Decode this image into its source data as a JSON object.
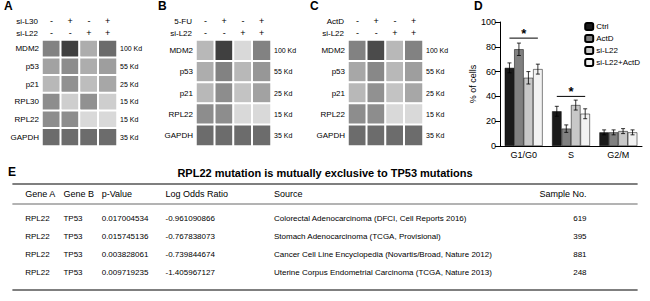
{
  "chart_data": [
    {
      "type": "heatmap",
      "title": "A",
      "lane_rows": [
        {
          "name": "si-L30",
          "values": [
            "-",
            "+",
            "-",
            "+"
          ]
        },
        {
          "name": "si-L22",
          "values": [
            "-",
            "-",
            "+",
            "+"
          ]
        }
      ],
      "categories": [
        "MDM2",
        "p53",
        "p21",
        "RPL30",
        "RPL22",
        "GAPDH"
      ],
      "kd_labels": [
        "100 Kd",
        "55 Kd",
        "25 Kd",
        "15 Kd",
        "15 Kd",
        "35 Kd"
      ],
      "values": [
        [
          0.55,
          0.85,
          0.35,
          0.65
        ],
        [
          0.4,
          0.5,
          0.35,
          0.42
        ],
        [
          0.3,
          0.48,
          0.28,
          0.38
        ],
        [
          0.5,
          0.2,
          0.48,
          0.2
        ],
        [
          0.5,
          0.5,
          0.15,
          0.15
        ],
        [
          0.65,
          0.65,
          0.65,
          0.65
        ]
      ],
      "zlim": [
        0,
        1
      ]
    },
    {
      "type": "heatmap",
      "title": "B",
      "lane_rows": [
        {
          "name": "5-FU",
          "values": [
            "-",
            "+",
            "-",
            "+"
          ]
        },
        {
          "name": "si-L22",
          "values": [
            "-",
            "-",
            "+",
            "+"
          ]
        }
      ],
      "categories": [
        "MDM2",
        "p53",
        "p21",
        "RPL22",
        "GAPDH"
      ],
      "kd_labels": [
        "100 Kd",
        "55 Kd",
        "25 Kd",
        "15 Kd",
        "35 Kd"
      ],
      "values": [
        [
          0.3,
          0.85,
          0.15,
          0.55
        ],
        [
          0.35,
          0.55,
          0.3,
          0.45
        ],
        [
          0.3,
          0.5,
          0.25,
          0.4
        ],
        [
          0.5,
          0.5,
          0.15,
          0.15
        ],
        [
          0.65,
          0.65,
          0.65,
          0.65
        ]
      ],
      "zlim": [
        0,
        1
      ]
    },
    {
      "type": "heatmap",
      "title": "C",
      "lane_rows": [
        {
          "name": "ActD",
          "values": [
            "-",
            "+",
            "-",
            "+"
          ]
        },
        {
          "name": "si-L22",
          "values": [
            "-",
            "-",
            "+",
            "+"
          ]
        }
      ],
      "categories": [
        "MDM2",
        "p53",
        "p21",
        "RPL22",
        "GAPDH"
      ],
      "kd_labels": [
        "100 Kd",
        "55 Kd",
        "25 Kd",
        "15 Kd",
        "35 Kd"
      ],
      "values": [
        [
          0.55,
          0.8,
          0.3,
          0.55
        ],
        [
          0.38,
          0.52,
          0.3,
          0.42
        ],
        [
          0.3,
          0.48,
          0.25,
          0.38
        ],
        [
          0.5,
          0.5,
          0.15,
          0.15
        ],
        [
          0.65,
          0.65,
          0.65,
          0.65
        ]
      ],
      "zlim": [
        0,
        1
      ]
    },
    {
      "type": "bar",
      "title": "D",
      "categories": [
        "G1/G0",
        "S",
        "G2/M"
      ],
      "series": [
        {
          "name": "Ctrl",
          "color": "#1a1a1a",
          "values": [
            63,
            28,
            11
          ],
          "errors": [
            4,
            4,
            2
          ]
        },
        {
          "name": "ActD",
          "color": "#808080",
          "values": [
            78,
            14,
            11
          ],
          "errors": [
            5,
            3,
            2
          ]
        },
        {
          "name": "si-L22",
          "color": "#c8c8c8",
          "values": [
            55,
            33,
            12
          ],
          "errors": [
            5,
            4,
            2
          ]
        },
        {
          "name": "si-L22+ActD",
          "color": "#f2f2f2",
          "values": [
            62,
            26,
            11
          ],
          "errors": [
            4,
            4,
            2
          ]
        }
      ],
      "ylabel": "% of cells",
      "ylim": [
        0,
        100
      ],
      "yticks": [
        0,
        20,
        40,
        60,
        80,
        100
      ],
      "grid": false,
      "legend": "upper right",
      "annotations": [
        {
          "text": "*",
          "x": "G1/G0",
          "y": 87
        },
        {
          "text": "*",
          "x": "S",
          "y": 40
        }
      ]
    },
    {
      "type": "table",
      "label": "E",
      "title": "RPL22 mutation is mutually exclusive to TP53 mutations",
      "headers": [
        "Gene A",
        "Gene B",
        "p-Value",
        "Log Odds Ratio",
        "Source",
        "Sample No."
      ],
      "rows": [
        [
          "RPL22",
          "TP53",
          "0.017004534",
          "-0.961090866",
          "Colorectal Adenocarcinoma (DFCI, Cell Reports 2016)",
          "619"
        ],
        [
          "RPL22",
          "TP53",
          "0.015745136",
          "-0.767838073",
          "Stomach Adenocarcinoma (TCGA, Provisional)",
          "395"
        ],
        [
          "RPL22",
          "TP53",
          "0.003828061",
          "-0.739844674",
          "Cancer Cell Line Encyclopedia (Novartis/Broad, Nature 2012)",
          "881"
        ],
        [
          "RPL22",
          "TP53",
          "0.009719235",
          "-1.405967127",
          "Uterine Corpus Endometrial Carcinoma (TCGA, Nature 2013)",
          "248"
        ]
      ]
    }
  ]
}
